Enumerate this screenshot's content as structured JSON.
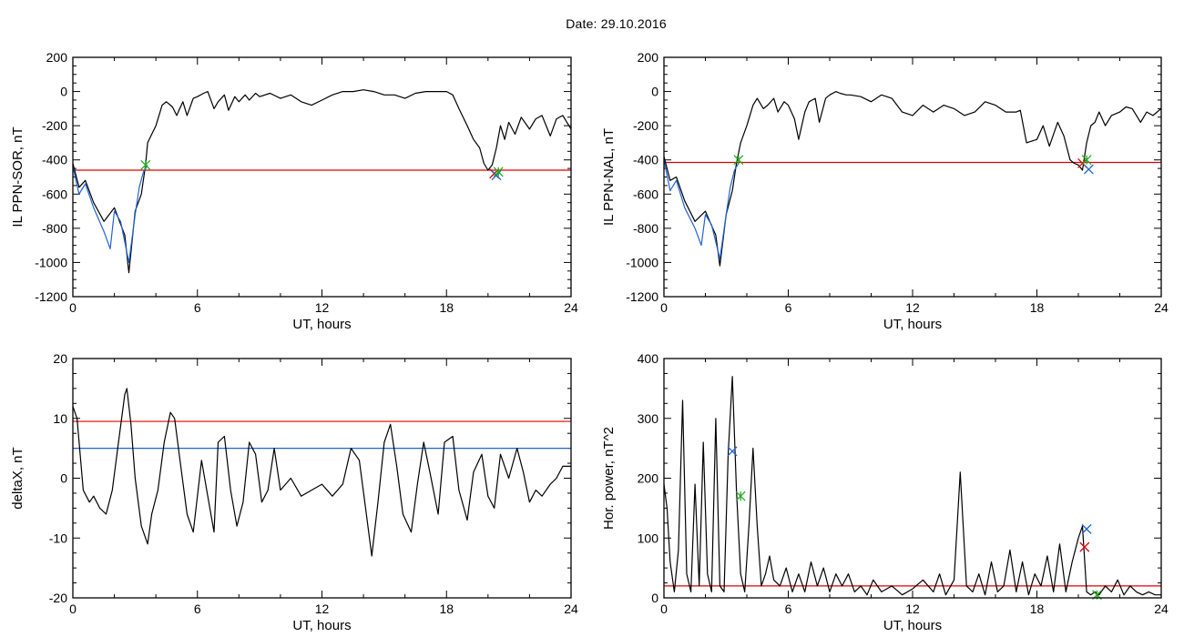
{
  "page_title": "Date:  29.10.2016",
  "chart_data": [
    {
      "type": "line",
      "xlabel": "UT, hours",
      "ylabel": "IL PPN-SOR, nT",
      "xlim": [
        0,
        24
      ],
      "ylim": [
        -1200,
        200
      ],
      "xticks": [
        0,
        6,
        12,
        18,
        24
      ],
      "yticks": [
        -1200,
        -1000,
        -800,
        -600,
        -400,
        -200,
        0,
        200
      ],
      "grid": false,
      "series": [
        {
          "color": "#000000",
          "x": [
            0,
            0.3,
            0.6,
            1,
            1.5,
            2,
            2.5,
            2.7,
            3,
            3.3,
            3.5,
            3.6,
            3.8,
            4,
            4.3,
            4.5,
            4.8,
            5,
            5.3,
            5.5,
            5.8,
            6,
            6.3,
            6.5,
            6.8,
            7,
            7.3,
            7.5,
            7.8,
            8,
            8.3,
            8.5,
            8.8,
            9,
            9.5,
            10,
            10.5,
            11,
            11.5,
            12,
            12.5,
            13,
            13.5,
            14,
            14.5,
            15,
            15.5,
            16,
            16.5,
            17,
            17.5,
            18,
            18.3,
            18.6,
            19,
            19.3,
            19.6,
            19.8,
            20,
            20.2,
            20.4,
            20.6,
            20.8,
            21,
            21.3,
            21.6,
            22,
            22.3,
            22.6,
            23,
            23.3,
            23.6,
            24
          ],
          "y": [
            -420,
            -560,
            -520,
            -650,
            -760,
            -680,
            -840,
            -1060,
            -700,
            -600,
            -430,
            -300,
            -250,
            -200,
            -80,
            -60,
            -90,
            -140,
            -60,
            -140,
            -40,
            -30,
            -10,
            0,
            -100,
            -60,
            -20,
            -110,
            -30,
            -60,
            -20,
            -50,
            -10,
            -30,
            -10,
            -40,
            -20,
            -60,
            -80,
            -50,
            -20,
            0,
            0,
            10,
            0,
            -20,
            -20,
            -40,
            -10,
            0,
            0,
            0,
            -20,
            -100,
            -200,
            -280,
            -330,
            -420,
            -460,
            -430,
            -330,
            -200,
            -280,
            -180,
            -250,
            -150,
            -220,
            -160,
            -140,
            -260,
            -160,
            -140,
            -220
          ]
        },
        {
          "color": "#1e63d6",
          "x": [
            0,
            0.3,
            0.6,
            1,
            1.5,
            1.8,
            2,
            2.3,
            2.5,
            2.7,
            3,
            3.2,
            3.4,
            3.6
          ],
          "y": [
            -440,
            -600,
            -540,
            -680,
            -820,
            -920,
            -700,
            -760,
            -880,
            -1000,
            -720,
            -560,
            -470,
            -430
          ]
        }
      ],
      "hlines": [
        {
          "y": -460,
          "color": "#e00000"
        }
      ],
      "markers": [
        {
          "x": 3.5,
          "y": -430,
          "color": "#22aa22",
          "symbol": "asterisk"
        },
        {
          "x": 20.3,
          "y": -480,
          "color": "#e00000",
          "symbol": "x"
        },
        {
          "x": 20.4,
          "y": -490,
          "color": "#1e63d6",
          "symbol": "x"
        },
        {
          "x": 20.5,
          "y": -470,
          "color": "#22aa22",
          "symbol": "asterisk"
        }
      ]
    },
    {
      "type": "line",
      "xlabel": "UT, hours",
      "ylabel": "IL PPN-NAL, nT",
      "xlim": [
        0,
        24
      ],
      "ylim": [
        -1200,
        200
      ],
      "xticks": [
        0,
        6,
        12,
        18,
        24
      ],
      "yticks": [
        -1200,
        -1000,
        -800,
        -600,
        -400,
        -200,
        0,
        200
      ],
      "grid": false,
      "series": [
        {
          "color": "#000000",
          "x": [
            0,
            0.3,
            0.6,
            1,
            1.5,
            2,
            2.5,
            2.7,
            3,
            3.3,
            3.5,
            3.7,
            4,
            4.3,
            4.5,
            4.8,
            5,
            5.3,
            5.5,
            5.8,
            6,
            6.3,
            6.5,
            6.8,
            7,
            7.3,
            7.5,
            7.8,
            8,
            8.3,
            8.5,
            8.8,
            9,
            9.5,
            10,
            10.5,
            11,
            11.5,
            12,
            12.5,
            13,
            13.5,
            14,
            14.5,
            15,
            15.5,
            16,
            16.5,
            17,
            17.2,
            17.5,
            18,
            18.3,
            18.6,
            19,
            19.3,
            19.6,
            19.8,
            20,
            20.2,
            20.4,
            20.6,
            20.8,
            21,
            21.3,
            21.6,
            22,
            22.3,
            22.6,
            23,
            23.3,
            23.6,
            24
          ],
          "y": [
            -380,
            -520,
            -500,
            -640,
            -760,
            -700,
            -840,
            -1020,
            -720,
            -580,
            -420,
            -300,
            -200,
            -80,
            -40,
            -100,
            -80,
            -40,
            -120,
            -60,
            -80,
            -160,
            -280,
            -120,
            -60,
            -40,
            -180,
            -40,
            -20,
            0,
            -10,
            -20,
            -20,
            -30,
            -60,
            -20,
            -40,
            -120,
            -140,
            -80,
            -120,
            -80,
            -100,
            -140,
            -120,
            -60,
            -80,
            -120,
            -120,
            -110,
            -300,
            -280,
            -200,
            -320,
            -180,
            -260,
            -400,
            -420,
            -430,
            -460,
            -300,
            -200,
            -180,
            -120,
            -200,
            -140,
            -120,
            -90,
            -100,
            -180,
            -120,
            -140,
            -100
          ]
        },
        {
          "color": "#1e63d6",
          "x": [
            0,
            0.3,
            0.6,
            1,
            1.5,
            1.8,
            2,
            2.3,
            2.5,
            2.7,
            3,
            3.2,
            3.4,
            3.6
          ],
          "y": [
            -400,
            -580,
            -520,
            -680,
            -800,
            -900,
            -720,
            -780,
            -880,
            -980,
            -720,
            -560,
            -460,
            -420
          ]
        }
      ],
      "hlines": [
        {
          "y": -415,
          "color": "#e00000"
        }
      ],
      "markers": [
        {
          "x": 3.6,
          "y": -400,
          "color": "#22aa22",
          "symbol": "asterisk"
        },
        {
          "x": 20.2,
          "y": -420,
          "color": "#e00000",
          "symbol": "x"
        },
        {
          "x": 20.5,
          "y": -455,
          "color": "#1e63d6",
          "symbol": "x"
        },
        {
          "x": 20.4,
          "y": -400,
          "color": "#22aa22",
          "symbol": "asterisk"
        }
      ]
    },
    {
      "type": "line",
      "xlabel": "UT, hours",
      "ylabel": "deltaX, nT",
      "xlim": [
        0,
        24
      ],
      "ylim": [
        -20,
        20
      ],
      "xticks": [
        0,
        6,
        12,
        18,
        24
      ],
      "yticks": [
        -20,
        -10,
        0,
        10,
        20
      ],
      "grid": false,
      "series": [
        {
          "color": "#000000",
          "x": [
            0,
            0.2,
            0.5,
            0.8,
            1,
            1.3,
            1.6,
            1.9,
            2.2,
            2.5,
            2.6,
            2.8,
            3.0,
            3.3,
            3.6,
            3.8,
            4.1,
            4.4,
            4.7,
            4.9,
            5.2,
            5.5,
            5.8,
            6.2,
            6.5,
            6.8,
            7.0,
            7.3,
            7.6,
            7.9,
            8.2,
            8.5,
            8.8,
            9.1,
            9.4,
            9.7,
            10,
            10.5,
            11,
            11.5,
            12,
            12.5,
            13,
            13.4,
            13.8,
            14.1,
            14.4,
            14.7,
            15,
            15.3,
            15.6,
            15.9,
            16.3,
            16.6,
            16.9,
            17.2,
            17.6,
            17.9,
            18.3,
            18.6,
            19,
            19.3,
            19.7,
            20,
            20.3,
            20.6,
            21,
            21.4,
            21.7,
            22,
            22.3,
            22.6,
            23,
            23.3,
            23.6,
            24
          ],
          "y": [
            12,
            10,
            -2,
            -4,
            -3,
            -5,
            -6,
            -2,
            6,
            14,
            15,
            9,
            0,
            -8,
            -11,
            -6,
            -2,
            6,
            11,
            10,
            2,
            -6,
            -9,
            3,
            -3,
            -9,
            6,
            7,
            -2,
            -8,
            -4,
            6,
            4,
            -4,
            -2,
            5,
            -2,
            0,
            -3,
            -2,
            -1,
            -3,
            -1,
            5,
            3,
            -5,
            -13,
            -4,
            6,
            9,
            2,
            -6,
            -9,
            -1,
            6,
            1,
            -6,
            6,
            7,
            -2,
            -7,
            1,
            4,
            -3,
            -5,
            4,
            0,
            5,
            1,
            -4,
            -2,
            -3,
            -1,
            0,
            2,
            2
          ]
        }
      ],
      "hlines": [
        {
          "y": 9.5,
          "color": "#e00000"
        },
        {
          "y": 5,
          "color": "#1e63d6"
        }
      ],
      "markers": []
    },
    {
      "type": "line",
      "xlabel": "UT, hours",
      "ylabel": "Hor. power, nT^2",
      "xlim": [
        0,
        24
      ],
      "ylim": [
        0,
        400
      ],
      "xticks": [
        0,
        6,
        12,
        18,
        24
      ],
      "yticks": [
        0,
        100,
        200,
        300,
        400
      ],
      "grid": false,
      "series": [
        {
          "color": "#000000",
          "x": [
            0,
            0.15,
            0.3,
            0.5,
            0.7,
            0.9,
            1.1,
            1.3,
            1.5,
            1.7,
            1.9,
            2.1,
            2.3,
            2.5,
            2.7,
            2.9,
            3.1,
            3.3,
            3.5,
            3.7,
            3.9,
            4.1,
            4.3,
            4.5,
            4.7,
            4.9,
            5.1,
            5.3,
            5.6,
            5.9,
            6.2,
            6.5,
            6.8,
            7.1,
            7.4,
            7.7,
            8.0,
            8.3,
            8.6,
            8.9,
            9.2,
            9.5,
            9.8,
            10.1,
            10.5,
            11,
            11.5,
            12,
            12.5,
            13,
            13.3,
            13.6,
            14,
            14.3,
            14.6,
            14.9,
            15.2,
            15.5,
            15.8,
            16.1,
            16.4,
            16.7,
            17,
            17.3,
            17.6,
            17.9,
            18.2,
            18.5,
            18.8,
            19.1,
            19.4,
            19.7,
            20,
            20.2,
            20.4,
            20.6,
            20.8,
            21,
            21.3,
            21.6,
            21.9,
            22.2,
            22.5,
            22.8,
            23.1,
            23.4,
            23.7,
            24
          ],
          "y": [
            190,
            150,
            60,
            10,
            80,
            330,
            40,
            10,
            190,
            20,
            260,
            40,
            10,
            300,
            20,
            10,
            240,
            370,
            180,
            40,
            10,
            120,
            250,
            120,
            20,
            40,
            70,
            30,
            20,
            50,
            10,
            40,
            10,
            60,
            20,
            50,
            10,
            40,
            20,
            40,
            10,
            20,
            5,
            30,
            10,
            20,
            5,
            15,
            30,
            10,
            40,
            5,
            30,
            210,
            20,
            10,
            40,
            5,
            60,
            10,
            20,
            80,
            10,
            60,
            5,
            40,
            20,
            70,
            10,
            90,
            10,
            60,
            100,
            120,
            10,
            5,
            10,
            5,
            20,
            10,
            30,
            5,
            20,
            10,
            5,
            10,
            5,
            5
          ]
        }
      ],
      "hlines": [
        {
          "y": 20,
          "color": "#e00000"
        }
      ],
      "markers": [
        {
          "x": 3.3,
          "y": 245,
          "color": "#1e63d6",
          "symbol": "x"
        },
        {
          "x": 3.7,
          "y": 170,
          "color": "#22aa22",
          "symbol": "asterisk"
        },
        {
          "x": 20.3,
          "y": 85,
          "color": "#e00000",
          "symbol": "x"
        },
        {
          "x": 20.4,
          "y": 115,
          "color": "#1e63d6",
          "symbol": "x"
        },
        {
          "x": 20.9,
          "y": 5,
          "color": "#22aa22",
          "symbol": "asterisk"
        }
      ]
    }
  ]
}
